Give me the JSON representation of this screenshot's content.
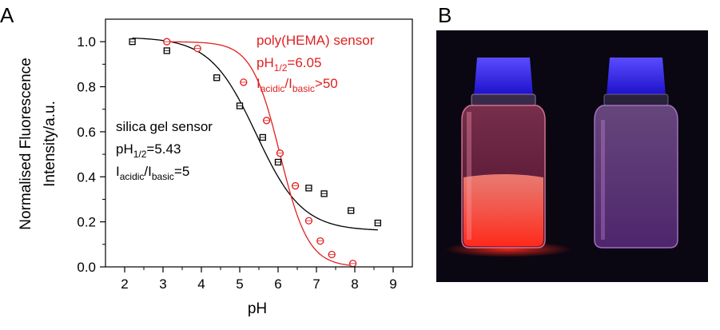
{
  "panels": {
    "a_label": "A",
    "b_label": "B"
  },
  "chart_data": {
    "type": "scatter",
    "xlabel": "pH",
    "ylabel_line1": "Normalised Fluorescence",
    "ylabel_line2": "Intensity/a.u.",
    "xlim": [
      1.5,
      9.5
    ],
    "ylim": [
      0.0,
      1.1
    ],
    "xticks": [
      "2",
      "3",
      "4",
      "5",
      "6",
      "7",
      "8",
      "9"
    ],
    "yticks": [
      "0.0",
      "0.2",
      "0.4",
      "0.6",
      "0.8",
      "1.0"
    ],
    "grid": false,
    "series": [
      {
        "color": "#000000",
        "marker": "square",
        "x": [
          2.2,
          3.1,
          4.4,
          5.0,
          5.6,
          6.0,
          6.8,
          7.2,
          7.9,
          8.6
        ],
        "y": [
          1.0,
          0.96,
          0.84,
          0.715,
          0.575,
          0.465,
          0.35,
          0.325,
          0.25,
          0.195
        ],
        "fit_pH_half": 5.43,
        "fit_min": 0.16,
        "fit_max": 1.02,
        "fit_slope": 0.6
      },
      {
        "color": "#e02020",
        "marker": "circle",
        "x": [
          3.1,
          3.9,
          5.1,
          5.7,
          6.05,
          6.45,
          6.8,
          7.1,
          7.4,
          7.95
        ],
        "y": [
          1.0,
          0.97,
          0.82,
          0.65,
          0.505,
          0.36,
          0.205,
          0.115,
          0.055,
          0.015
        ],
        "fit_pH_half": 6.05,
        "fit_min": 0.0,
        "fit_max": 1.0,
        "fit_slope": 0.37
      }
    ],
    "annotations": {
      "red": {
        "line1": "poly(HEMA) sensor",
        "line2_main": "pH",
        "line2_sub": "1/2",
        "line2_rest": "=6.05",
        "line3_a": "I",
        "line3_a_sub": "acidic",
        "line3_sep": "/I",
        "line3_b_sub": "basic",
        "line3_rest": ">50"
      },
      "black": {
        "line1": "silica gel sensor",
        "line2_main": "pH",
        "line2_sub": "1/2",
        "line2_rest": "=5.43",
        "line3_a": "I",
        "line3_a_sub": "acidic",
        "line3_sep": "/I",
        "line3_b_sub": "basic",
        "line3_rest": "=5"
      }
    }
  },
  "photo": {
    "background": "#0a0612",
    "vial_left_glow": "#ff3a26",
    "vial_right_glow": "#c06ad8",
    "cap_color": "#2b1ff0"
  }
}
